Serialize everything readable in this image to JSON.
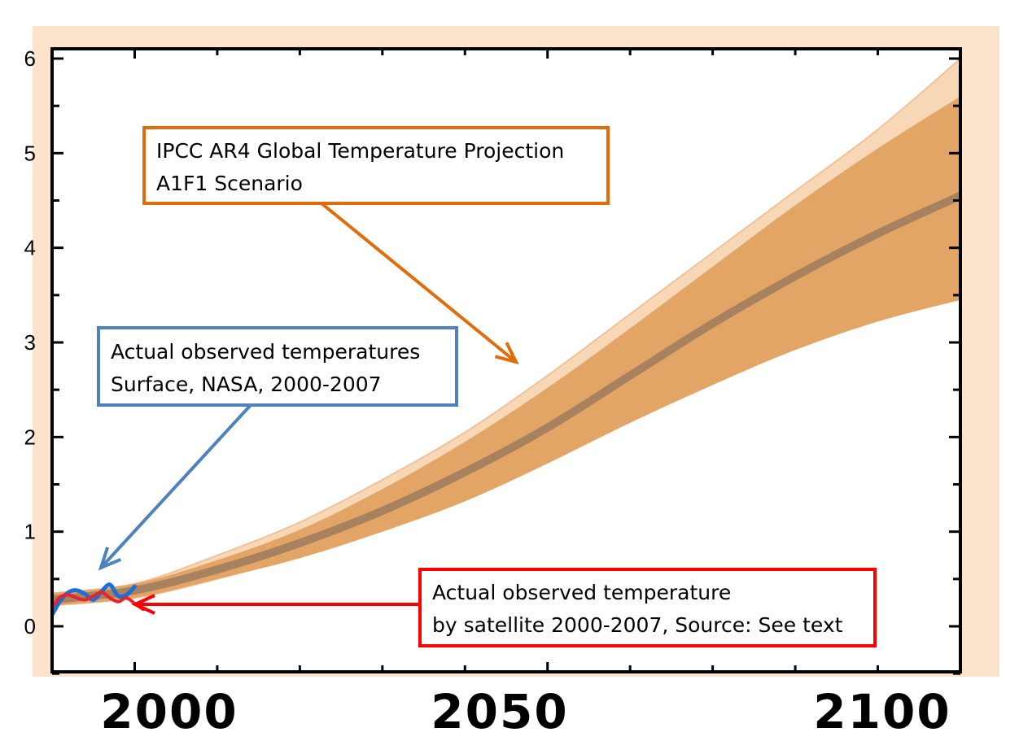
{
  "chart_data": {
    "type": "area",
    "x_ticks": [
      2000,
      2050,
      2100
    ],
    "y_ticks": [
      0,
      1,
      2,
      3,
      4,
      5,
      6
    ],
    "xlim": [
      1990,
      2100
    ],
    "ylim": [
      -0.5,
      6
    ],
    "grid": false,
    "colors": {
      "page_background": "#fbe3cc",
      "outer_band": "#f8d7b6",
      "inner_band": "#e2a566",
      "mean_line": "#a8815f",
      "nasa_line": "#1e6fd4",
      "satellite_line": "#e8232a",
      "ipcc_callout": "#e36c0a",
      "nasa_callout": "#4f81bd",
      "satellite_callout": "#ff0000"
    },
    "series": [
      {
        "kind": "band_outer",
        "x": [
          1990,
          2000,
          2010,
          2020,
          2030,
          2040,
          2050,
          2060,
          2070,
          2080,
          2090,
          2100
        ],
        "lower": [
          0.22,
          0.3,
          0.5,
          0.75,
          1.05,
          1.4,
          1.8,
          2.2,
          2.6,
          2.95,
          3.25,
          3.5
        ],
        "upper": [
          0.35,
          0.45,
          0.75,
          1.1,
          1.55,
          2.05,
          2.65,
          3.3,
          3.95,
          4.6,
          5.25,
          6.0
        ]
      },
      {
        "kind": "band_inner",
        "x": [
          1990,
          2000,
          2010,
          2020,
          2030,
          2040,
          2050,
          2060,
          2070,
          2080,
          2090,
          2100
        ],
        "lower": [
          0.22,
          0.3,
          0.5,
          0.72,
          1.0,
          1.32,
          1.72,
          2.15,
          2.55,
          2.92,
          3.22,
          3.45
        ],
        "upper": [
          0.35,
          0.45,
          0.7,
          1.02,
          1.45,
          1.95,
          2.52,
          3.15,
          3.8,
          4.45,
          5.05,
          5.6
        ]
      },
      {
        "kind": "mean",
        "x": [
          1990,
          2000,
          2010,
          2020,
          2030,
          2040,
          2050,
          2060,
          2070,
          2080,
          2090,
          2100
        ],
        "values": [
          0.28,
          0.38,
          0.6,
          0.88,
          1.22,
          1.63,
          2.1,
          2.65,
          3.2,
          3.7,
          4.15,
          4.55
        ]
      },
      {
        "kind": "nasa",
        "x": [
          1990.0,
          1991.0,
          1992.0,
          1993.0,
          1994.0,
          1995.0,
          1996.0,
          1997.0,
          1998.0,
          1999.0,
          2000.0
        ],
        "values": [
          0.12,
          0.27,
          0.36,
          0.38,
          0.34,
          0.28,
          0.37,
          0.44,
          0.32,
          0.33,
          0.42
        ]
      },
      {
        "kind": "satellite",
        "x": [
          1990.0,
          1991.0,
          1992.0,
          1993.0,
          1994.0,
          1995.0,
          1996.0,
          1997.0,
          1998.0,
          1999.0,
          2000.0,
          2001.0
        ],
        "values": [
          0.2,
          0.31,
          0.33,
          0.3,
          0.28,
          0.32,
          0.36,
          0.3,
          0.26,
          0.3,
          0.24,
          0.18
        ]
      }
    ],
    "annotations": [
      {
        "id": "ipcc",
        "lines": [
          "IPCC AR4 Global Temperature Projection",
          "A1F1 Scenario"
        ],
        "arrow_to": [
          2045,
          2.75
        ]
      },
      {
        "id": "nasa",
        "lines": [
          "Actual observed temperatures",
          "Surface, NASA, 2000-2007"
        ],
        "arrow_to": [
          1995,
          0.58
        ]
      },
      {
        "id": "satellite",
        "lines": [
          "Actual observed temperature",
          "by satellite 2000-2007, Source: See text"
        ],
        "arrow_to": [
          2004,
          0.2
        ]
      }
    ]
  }
}
